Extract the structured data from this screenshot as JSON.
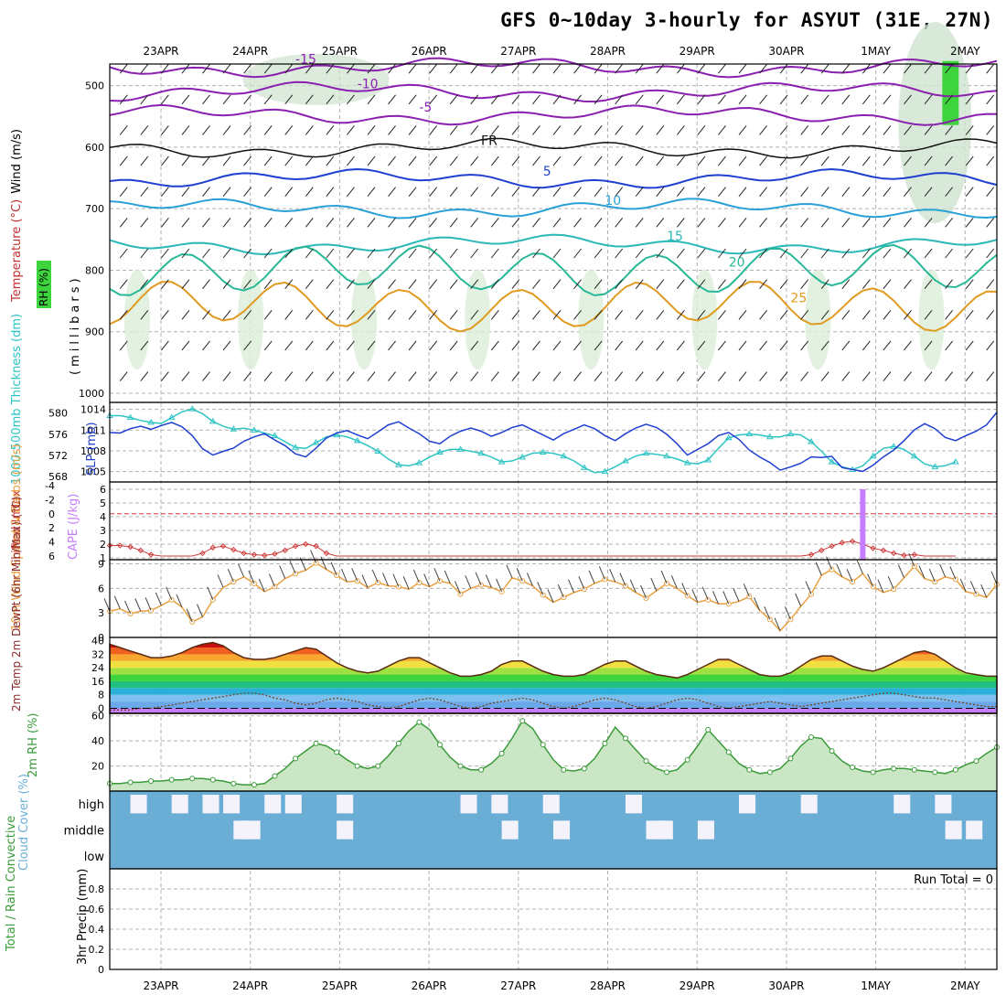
{
  "title": "GFS 0~10day 3-hourly for ASYUT (31E, 27N)",
  "dates": [
    "23APR",
    "24APR",
    "25APR",
    "26APR",
    "27APR",
    "28APR",
    "29APR",
    "30APR",
    "1MAY",
    "2MAY"
  ],
  "run_total": "Run Total = 0",
  "colors": {
    "slp": "#1f3fd0",
    "thickness": "#2ec4c4",
    "lifted": "#d03a3a",
    "cape": "#c77dff",
    "wind": "#e8a040",
    "cloud": "#6aaed6",
    "rh_fill": "#b8ddb0",
    "rh_line": "#3a9a3a"
  },
  "chart_data": [
    {
      "name": "upper-air",
      "type": "contour",
      "ylabel_wind": "Wind (m/s)",
      "ylabel_temp": "Temperature (°C)",
      "ylabel_rh": "RH (%)",
      "ylabel_units": "(millibars)",
      "yticks": [
        "500",
        "600",
        "700",
        "800",
        "900",
        "1000"
      ],
      "ylim": [
        1000,
        450
      ],
      "isotherm_labels": [
        "-15",
        "-10",
        "-5",
        "FR",
        "5",
        "10",
        "15",
        "20",
        "25"
      ],
      "isotherms": [
        {
          "label": "-15",
          "level": 470
        },
        {
          "label": "-10",
          "level": 510
        },
        {
          "label": "-5",
          "level": 548
        },
        {
          "label": "FR",
          "level": 602
        },
        {
          "label": "5",
          "level": 652
        },
        {
          "label": "10",
          "level": 700
        },
        {
          "label": "15",
          "level": 758
        },
        {
          "label": "20",
          "level": 800
        },
        {
          "label": "25",
          "level": 858
        }
      ]
    },
    {
      "name": "slp-thickness",
      "type": "line",
      "ylabel_left": "1000-500mb Thickness (dm)",
      "ylabel_right": "SLP (mb)",
      "yticks_left": [
        "568",
        "572",
        "576",
        "580"
      ],
      "yticks_right": [
        "1005",
        "1008",
        "1011",
        "1014"
      ],
      "ylim_left": [
        567,
        582
      ],
      "ylim_right": [
        1003.5,
        1015
      ],
      "slp": [
        1010.8,
        1010.7,
        1011.4,
        1011.8,
        1011.3,
        1011.9,
        1012.4,
        1011.7,
        1010.3,
        1008.2,
        1007.2,
        1007.8,
        1008.3,
        1009.4,
        1010.1,
        1010.6,
        1009.6,
        1008.7,
        1007.4,
        1006.9,
        1008.3,
        1009.9,
        1010.7,
        1011.1,
        1010.4,
        1009.8,
        1010.9,
        1012.0,
        1012.5,
        1011.5,
        1010.6,
        1009.4,
        1009.0,
        1010.2,
        1011.0,
        1011.5,
        1011.0,
        1010.2,
        1010.8,
        1011.6,
        1012.0,
        1011.2,
        1010.4,
        1009.6,
        1010.6,
        1011.3,
        1012.0,
        1011.4,
        1010.3,
        1009.5,
        1010.6,
        1011.5,
        1012.1,
        1011.6,
        1010.5,
        1009.0,
        1007.2,
        1008.1,
        1009.0,
        1010.3,
        1010.8,
        1009.7,
        1008.0,
        1006.9,
        1006.0,
        1004.8,
        1005.3,
        1005.9,
        1006.9,
        1006.8,
        1007.0,
        1005.2,
        1004.9,
        1004.6,
        1005.6,
        1006.9,
        1008.0,
        1009.5,
        1011.2,
        1012.2,
        1011.4,
        1010.0,
        1009.5,
        1010.3,
        1011.0,
        1012.0,
        1014.0
      ],
      "thickness": [
        580,
        580,
        579.6,
        579,
        578.6,
        578.4,
        579.6,
        580.8,
        581.4,
        580.4,
        578.8,
        577.8,
        577.2,
        577.4,
        577,
        576.4,
        575.8,
        574.6,
        573.4,
        573.2,
        574.4,
        575.6,
        576,
        575.6,
        574.8,
        573.8,
        572.6,
        571,
        569.8,
        569.6,
        570.2,
        571.4,
        572.4,
        573,
        573,
        572.6,
        572.2,
        571.4,
        570.4,
        570.6,
        571.4,
        572.2,
        572.4,
        572.2,
        571.6,
        570.6,
        569.2,
        568.2,
        568.4,
        569.4,
        570.6,
        571.6,
        572.2,
        572,
        571.6,
        571,
        570.2,
        570,
        570.8,
        573.2,
        575.4,
        576,
        576.2,
        576,
        575.6,
        575.6,
        576.2,
        576,
        574.6,
        572.6,
        570.4,
        569.4,
        568.8,
        569.6,
        571.6,
        573.2,
        573.6,
        573,
        571.6,
        570,
        569.4,
        569.6,
        570.4
      ]
    },
    {
      "name": "instability",
      "type": "line+bar",
      "ylabel_left": "Lifted Index",
      "ylabel_right": "CAPE (J/kg)",
      "yticks_lifted": [
        "-4",
        "-2",
        "0",
        "2",
        "4",
        "6"
      ],
      "yticks_cape": [
        "1",
        "2",
        "3",
        "4",
        "5",
        "6"
      ],
      "lifted_index": [
        4.5,
        4.5,
        4.7,
        5.2,
        5.8,
        6,
        6,
        6,
        6,
        5.6,
        4.8,
        4.6,
        5.1,
        5.6,
        5.8,
        5.9,
        5.7,
        5.2,
        4.6,
        4.3,
        4.6,
        5.6,
        6,
        6,
        6,
        6,
        6,
        6,
        6,
        6,
        6,
        6,
        6,
        6,
        6,
        6,
        6,
        6,
        6,
        6,
        6,
        6,
        6,
        6,
        6,
        6,
        6,
        6,
        6,
        6,
        6,
        6,
        6,
        6,
        6,
        6,
        6,
        6,
        6,
        6,
        6,
        6,
        6,
        6,
        6,
        6,
        6,
        6,
        5.8,
        5.2,
        4.6,
        4.1,
        3.9,
        4.3,
        4.9,
        5.2,
        5.6,
        5.9,
        5.8,
        6,
        6,
        6,
        6
      ],
      "cape": [
        {
          "x_index": 73,
          "value": 6
        }
      ]
    },
    {
      "name": "10m-wind",
      "type": "line",
      "ylabel": "10m Wind Speed & Barbs (m/s)",
      "yticks": [
        "0",
        "3",
        "6",
        "9"
      ],
      "ylim": [
        0,
        9.5
      ],
      "speed": [
        3.2,
        3.5,
        2.9,
        3.2,
        3.3,
        3.9,
        4.6,
        3.7,
        1.9,
        2.5,
        4.6,
        6.1,
        6.8,
        7.4,
        6.6,
        5.6,
        6.2,
        7.2,
        7.8,
        8.2,
        9.1,
        8.3,
        7.6,
        6.8,
        6.9,
        6.1,
        6.7,
        6.3,
        6.2,
        5.9,
        6.7,
        6.2,
        6.9,
        6.6,
        5.3,
        6.0,
        6.4,
        6.1,
        5.6,
        7.3,
        6.9,
        6.3,
        5.2,
        4.3,
        4.9,
        5.5,
        5.9,
        6.6,
        7.1,
        6.8,
        6.3,
        5.5,
        4.8,
        5.7,
        6.6,
        6.0,
        5.1,
        4.3,
        4.6,
        4.1,
        4.1,
        4.4,
        5.0,
        3.3,
        2.2,
        0.8,
        2.2,
        3.8,
        5.3,
        7.6,
        8.3,
        7.4,
        6.8,
        7.8,
        6.2,
        5.5,
        5.9,
        7.3,
        8.7,
        7.2,
        6.8,
        7.4,
        7.1,
        5.6,
        5.3,
        4.9,
        6.5
      ]
    },
    {
      "name": "2m-temp",
      "type": "area",
      "ylabel": "2m Temp 2m DewPt (6hr Min/Max) (°C)",
      "yticks": [
        "0",
        "8",
        "16",
        "24",
        "32",
        "40"
      ],
      "ylim": [
        -3,
        42
      ],
      "temperature": [
        38,
        36,
        34,
        32,
        30,
        30,
        31,
        33,
        36,
        38,
        39,
        37,
        33,
        30,
        29,
        29,
        30,
        32,
        34,
        36,
        35,
        31,
        27,
        24,
        22,
        21,
        22,
        25,
        28,
        30,
        30,
        27,
        24,
        21,
        19,
        19,
        20,
        22,
        26,
        28,
        28,
        25,
        22,
        20,
        19,
        19,
        20,
        23,
        26,
        28,
        28,
        25,
        22,
        20,
        19,
        18,
        20,
        23,
        26,
        29,
        29,
        26,
        23,
        20,
        19,
        19,
        21,
        25,
        29,
        31,
        31,
        28,
        25,
        23,
        22,
        24,
        27,
        30,
        33,
        34,
        32,
        28,
        24,
        21,
        20,
        19,
        19
      ],
      "dewpoint": [
        -1,
        -1,
        -1,
        0,
        0,
        1,
        2,
        3,
        4,
        5,
        6,
        7,
        8,
        9,
        9,
        8,
        6,
        5,
        3,
        2,
        3,
        5,
        6,
        5,
        4,
        2,
        1,
        0,
        1,
        3,
        5,
        6,
        5,
        3,
        1,
        0,
        1,
        3,
        4,
        5,
        6,
        5,
        3,
        1,
        0,
        1,
        3,
        5,
        6,
        5,
        3,
        1,
        0,
        1,
        3,
        5,
        6,
        5,
        3,
        1,
        0,
        1,
        2,
        3,
        4,
        3,
        2,
        1,
        2,
        3,
        4,
        5,
        6,
        7,
        8,
        9,
        9,
        8,
        7,
        6,
        6,
        5,
        4,
        3,
        2,
        1,
        1
      ]
    },
    {
      "name": "2m-rh",
      "type": "area",
      "ylabel": "2m RH (%)",
      "yticks": [
        "20",
        "40",
        "60"
      ],
      "ylim": [
        0,
        62
      ],
      "rh": [
        6,
        6,
        7,
        7,
        8,
        8,
        9,
        9,
        10,
        10,
        9,
        8,
        6,
        5,
        5,
        6,
        12,
        18,
        26,
        32,
        38,
        36,
        31,
        25,
        20,
        18,
        20,
        28,
        38,
        48,
        55,
        49,
        37,
        27,
        20,
        17,
        17,
        22,
        30,
        42,
        56,
        50,
        37,
        25,
        17,
        16,
        18,
        26,
        38,
        51,
        42,
        33,
        24,
        18,
        15,
        17,
        25,
        36,
        49,
        40,
        31,
        22,
        17,
        14,
        15,
        18,
        26,
        36,
        43,
        42,
        32,
        24,
        19,
        16,
        15,
        17,
        18,
        18,
        17,
        16,
        15,
        14,
        17,
        21,
        24,
        30,
        35
      ]
    },
    {
      "name": "cloud-cover",
      "type": "heatmap",
      "ylabel": "Cloud Cover (%)",
      "levels": [
        "high",
        "middle",
        "low"
      ]
    },
    {
      "name": "3hr-precip",
      "type": "bar",
      "ylabel_left": "Total / Rain Convective",
      "ylabel_right": "3hr Precip (mm)",
      "yticks": [
        "0",
        "0.2",
        "0.4",
        "0.6",
        "0.8"
      ],
      "ylim": [
        0,
        1
      ],
      "values": []
    }
  ]
}
